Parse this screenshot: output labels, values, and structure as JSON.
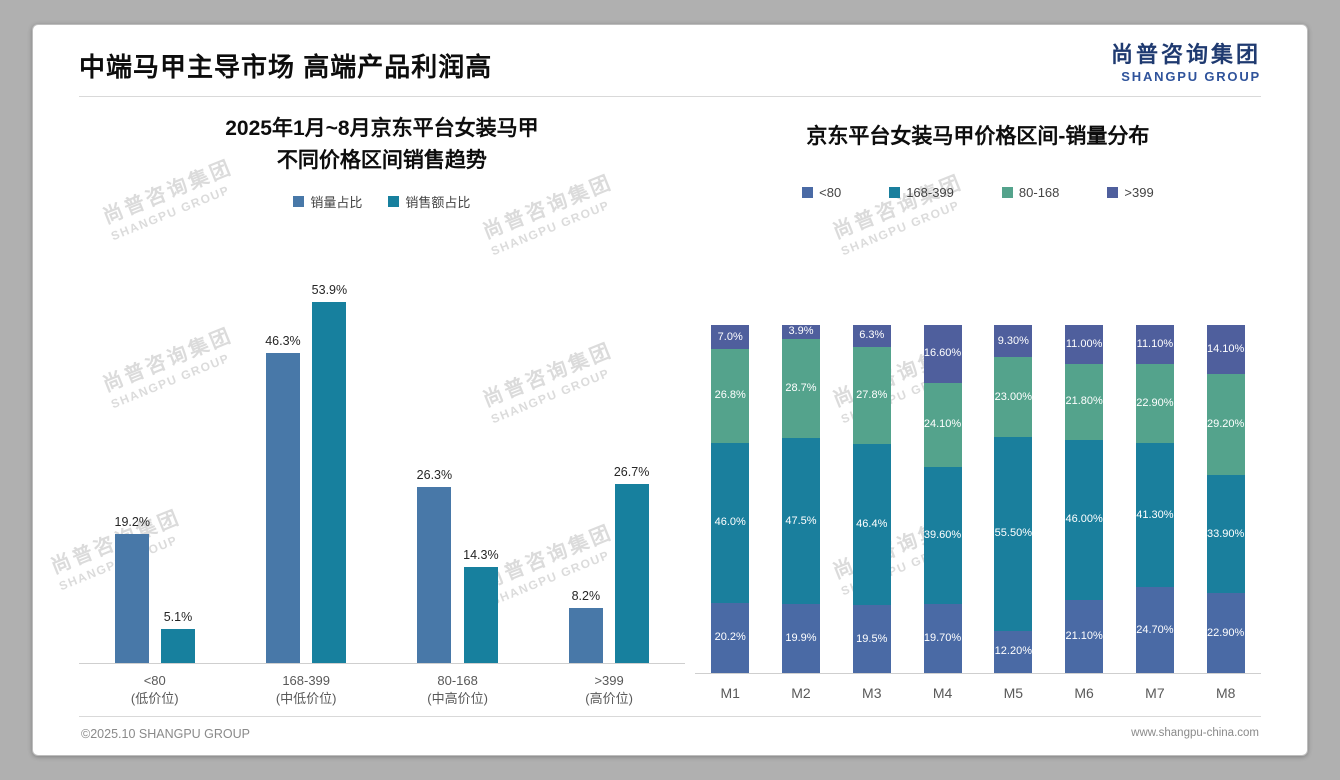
{
  "page": {
    "title": "中端马甲主导市场 高端产品利润高",
    "logo": {
      "cn": "尚普咨询集团",
      "en": "SHANGPU GROUP"
    },
    "watermark": {
      "cn": "尚普咨询集团",
      "en": "SHANGPU GROUP"
    },
    "footer": {
      "left": "©2025.10 SHANGPU GROUP",
      "right": "www.shangpu-china.com"
    }
  },
  "colors": {
    "series_blue": "#4878a8",
    "series_teal": "#17809e",
    "series_green": "#54a38c",
    "series_indigo": "#4f5f9d",
    "axis_line": "#cfcfcf",
    "axis_text": "#595959"
  },
  "chart_data": [
    {
      "type": "bar",
      "stacked": false,
      "title": "2025年1月~8月京东平台女装马甲不同价格区间销售趋势",
      "title_lines": [
        "2025年1月~8月京东平台女装马甲",
        "不同价格区间销售趋势"
      ],
      "categories": [
        "<80",
        "168-399",
        "80-168",
        ">399"
      ],
      "category_sublabels": [
        "(低价位)",
        "(中低价位)",
        "(中高价位)",
        "(高价位)"
      ],
      "ylim": [
        0,
        60
      ],
      "grid": false,
      "legend_position": "top",
      "series": [
        {
          "name": "销量占比",
          "color": "#4878a8",
          "values": [
            19.2,
            46.3,
            26.3,
            8.2
          ],
          "labels": [
            "19.2%",
            "46.3%",
            "26.3%",
            "8.2%"
          ]
        },
        {
          "name": "销售额占比",
          "color": "#17809e",
          "values": [
            5.1,
            53.9,
            14.3,
            26.7
          ],
          "labels": [
            "5.1%",
            "53.9%",
            "14.3%",
            "26.7%"
          ]
        }
      ]
    },
    {
      "type": "bar",
      "stacked": true,
      "title": "京东平台女装马甲价格区间-销量分布",
      "categories": [
        "M1",
        "M2",
        "M3",
        "M4",
        "M5",
        "M6",
        "M7",
        "M8"
      ],
      "ylim": [
        0,
        100
      ],
      "grid": false,
      "legend_position": "top",
      "series": [
        {
          "name": "<80",
          "color": "#4a6aa5",
          "values": [
            20.2,
            19.9,
            19.5,
            19.7,
            12.2,
            21.1,
            24.7,
            22.9
          ],
          "labels": [
            "20.2%",
            "19.9%",
            "19.5%",
            "19.70%",
            "12.20%",
            "21.10%",
            "24.70%",
            "22.90%"
          ]
        },
        {
          "name": "168-399",
          "color": "#1a7f9d",
          "values": [
            46.0,
            47.5,
            46.4,
            39.6,
            55.5,
            46.0,
            41.3,
            33.9
          ],
          "labels": [
            "46.0%",
            "47.5%",
            "46.4%",
            "39.60%",
            "55.50%",
            "46.00%",
            "41.30%",
            "33.90%"
          ]
        },
        {
          "name": "80-168",
          "color": "#54a38c",
          "values": [
            26.8,
            28.7,
            27.8,
            24.1,
            23.0,
            21.8,
            22.9,
            29.2
          ],
          "labels": [
            "26.8%",
            "28.7%",
            "27.8%",
            "24.10%",
            "23.00%",
            "21.80%",
            "22.90%",
            "29.20%"
          ]
        },
        {
          "name": ">399",
          "color": "#4f5f9d",
          "values": [
            7.0,
            3.9,
            6.3,
            16.6,
            9.3,
            11.0,
            11.1,
            14.1
          ],
          "labels": [
            "7.0%",
            "3.9%",
            "6.3%",
            "16.60%",
            "9.30%",
            "11.00%",
            "11.10%",
            "14.10%"
          ]
        }
      ]
    }
  ]
}
